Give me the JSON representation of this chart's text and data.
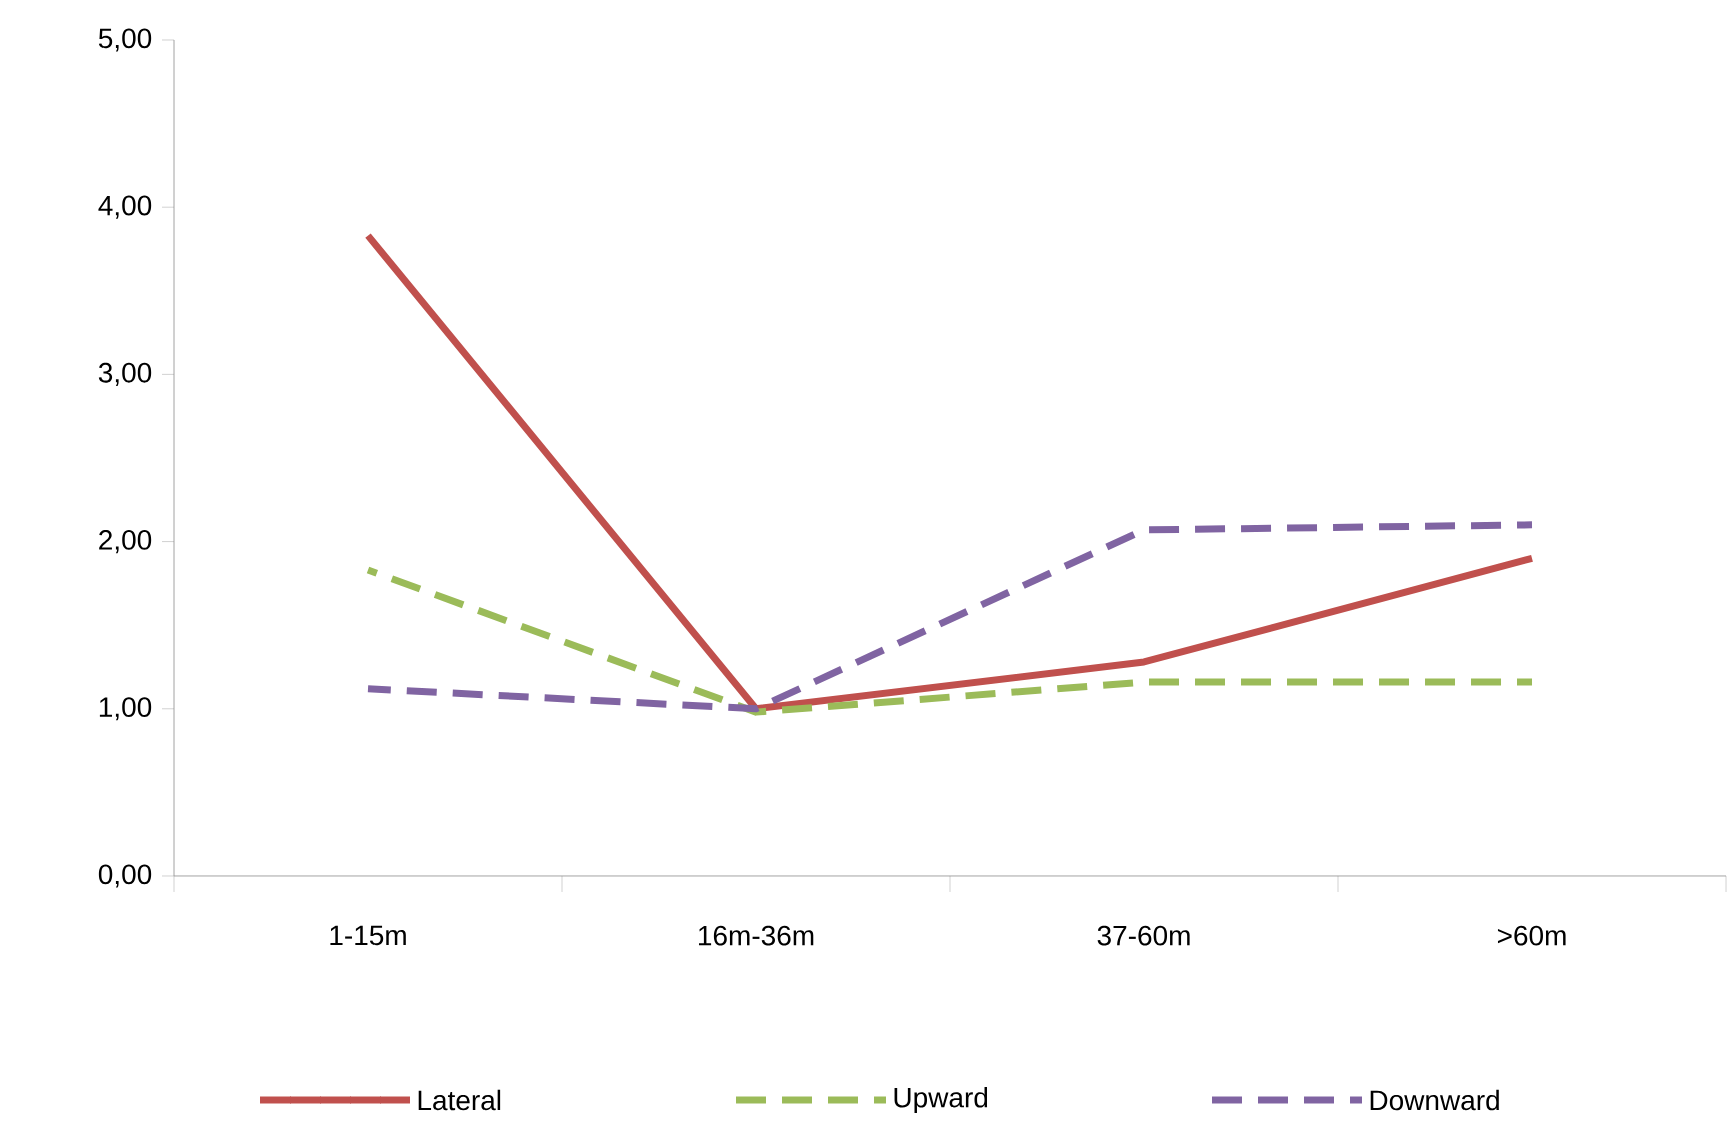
{
  "chart_data": {
    "type": "line",
    "categories": [
      "1-15m",
      "16m-36m",
      "37-60m",
      ">60m"
    ],
    "series": [
      {
        "name": "Lateral",
        "color": "#c0504d",
        "line_style": "solid",
        "values": [
          3.83,
          1.0,
          1.28,
          1.9
        ]
      },
      {
        "name": "Upward",
        "color": "#9bbb59",
        "line_style": "dashed",
        "values": [
          1.83,
          0.98,
          1.16,
          1.16
        ]
      },
      {
        "name": "Downward",
        "color": "#8064a2",
        "line_style": "dashed",
        "values": [
          1.12,
          1.0,
          2.07,
          2.1
        ]
      }
    ],
    "ylim": [
      0,
      5
    ],
    "yticks": [
      {
        "value": 0,
        "label": "0,00"
      },
      {
        "value": 1,
        "label": "1,00"
      },
      {
        "value": 2,
        "label": "2,00"
      },
      {
        "value": 3,
        "label": "3,00"
      },
      {
        "value": 4,
        "label": "4,00"
      },
      {
        "value": 5,
        "label": "5,00"
      }
    ],
    "legend": "bottom",
    "grid": false,
    "marker": "none"
  }
}
